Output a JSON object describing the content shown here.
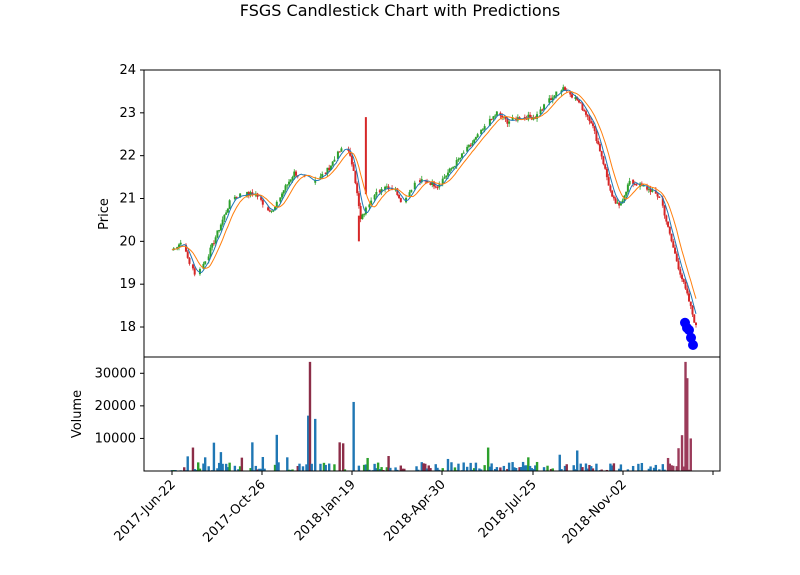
{
  "chart_data": {
    "type": "candlestick",
    "title": "FSGS Candlestick Chart with Predictions",
    "price_panel": {
      "ylabel": "Price",
      "ylim": [
        17.3,
        24.0
      ],
      "yticks": [
        18,
        19,
        20,
        21,
        22,
        23,
        24
      ],
      "series": [
        {
          "name": "",
          "color": "#1f77b4"
        },
        {
          "name": "",
          "color": "#ff7f0e"
        }
      ],
      "predictions": {
        "color": "#0000ff",
        "values": [
          18.1,
          17.98,
          17.93,
          17.75,
          17.58
        ]
      }
    },
    "volume_panel": {
      "ylabel": "Volume",
      "ylim": [
        0,
        35000
      ],
      "yticks": [
        10000,
        20000,
        30000
      ]
    },
    "x_axis": {
      "tick_labels": [
        "2017-Jun-22",
        "2017-Oct-26",
        "2018-Jan-19",
        "2018-Apr-30",
        "2018-Jul-25",
        "2018-Nov-02"
      ]
    },
    "colors": {
      "up": "#2ca02c",
      "down": "#d62728",
      "volume": "#1f77b4"
    },
    "close_anchors": [
      [
        0,
        19.8
      ],
      [
        6,
        20.0
      ],
      [
        10,
        19.5
      ],
      [
        14,
        19.2
      ],
      [
        20,
        19.6
      ],
      [
        28,
        20.4
      ],
      [
        34,
        21.0
      ],
      [
        40,
        21.1
      ],
      [
        48,
        21.1
      ],
      [
        54,
        20.8
      ],
      [
        58,
        20.7
      ],
      [
        64,
        21.2
      ],
      [
        70,
        21.6
      ],
      [
        80,
        21.4
      ],
      [
        88,
        21.6
      ],
      [
        96,
        22.1
      ],
      [
        100,
        22.2
      ],
      [
        104,
        21.7
      ],
      [
        108,
        20.5
      ],
      [
        114,
        21.0
      ],
      [
        122,
        21.3
      ],
      [
        128,
        21.2
      ],
      [
        132,
        20.9
      ],
      [
        140,
        21.4
      ],
      [
        146,
        21.4
      ],
      [
        152,
        21.3
      ],
      [
        160,
        21.7
      ],
      [
        170,
        22.2
      ],
      [
        180,
        22.7
      ],
      [
        186,
        23.0
      ],
      [
        192,
        22.8
      ],
      [
        200,
        22.9
      ],
      [
        208,
        22.9
      ],
      [
        216,
        23.3
      ],
      [
        224,
        23.6
      ],
      [
        232,
        23.3
      ],
      [
        240,
        22.8
      ],
      [
        246,
        22.0
      ],
      [
        252,
        21.0
      ],
      [
        256,
        20.8
      ],
      [
        262,
        21.4
      ],
      [
        268,
        21.3
      ],
      [
        274,
        21.2
      ],
      [
        280,
        21.0
      ],
      [
        284,
        20.3
      ],
      [
        290,
        19.4
      ],
      [
        296,
        18.6
      ],
      [
        300,
        18.0
      ]
    ],
    "volume_spikes": [
      [
        9,
        4500
      ],
      [
        12,
        7200
      ],
      [
        19,
        4200
      ],
      [
        24,
        8700
      ],
      [
        28,
        5800
      ],
      [
        40,
        4100
      ],
      [
        46,
        8800
      ],
      [
        52,
        4300
      ],
      [
        60,
        11100
      ],
      [
        66,
        4200
      ],
      [
        78,
        17000
      ],
      [
        79,
        33500
      ],
      [
        82,
        16000
      ],
      [
        96,
        8800
      ],
      [
        98,
        8500
      ],
      [
        104,
        21200
      ],
      [
        112,
        4000
      ],
      [
        124,
        4600
      ],
      [
        158,
        3700
      ],
      [
        181,
        7200
      ],
      [
        204,
        4200
      ],
      [
        222,
        5000
      ],
      [
        232,
        6300
      ],
      [
        284,
        4000
      ],
      [
        290,
        7000
      ],
      [
        292,
        11000
      ],
      [
        294,
        33500
      ],
      [
        295,
        28500
      ],
      [
        297,
        10000
      ]
    ]
  }
}
